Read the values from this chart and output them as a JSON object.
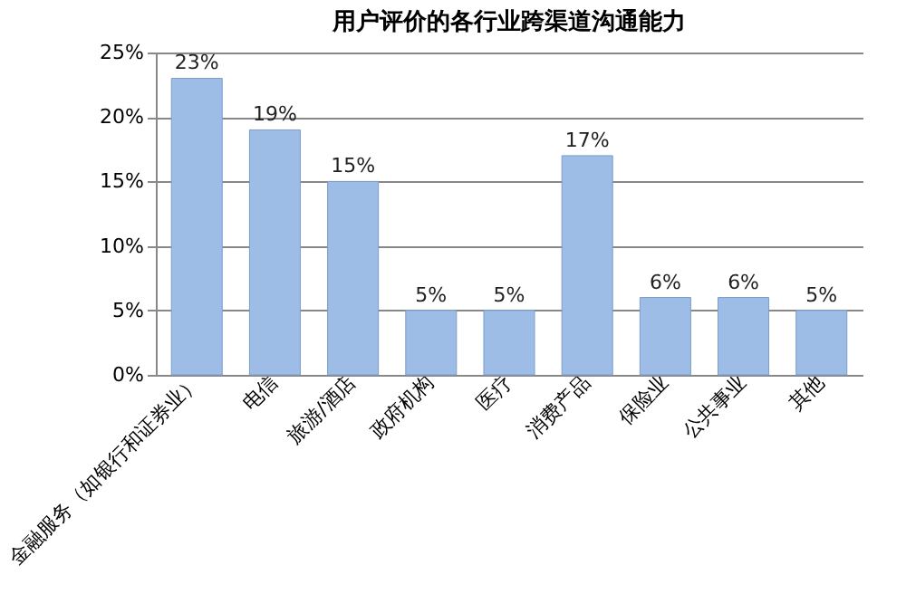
{
  "chart_data": {
    "type": "bar",
    "title": "用户评价的各行业跨渠道沟通能力",
    "categories": [
      "金融服务（如银行和证券业）",
      "电信",
      "旅游/酒店",
      "政府机构",
      "医疗",
      "消费产品",
      "保险业",
      "公共事业",
      "其他"
    ],
    "values": [
      23,
      19,
      15,
      5,
      5,
      17,
      6,
      6,
      5
    ],
    "value_labels": [
      "23%",
      "19%",
      "15%",
      "5%",
      "5%",
      "17%",
      "6%",
      "6%",
      "5%"
    ],
    "color": "#9dbde6",
    "ylim": [
      0,
      25
    ],
    "yticks": [
      {
        "value": 0,
        "label": "0%"
      },
      {
        "value": 5,
        "label": "5%"
      },
      {
        "value": 10,
        "label": "10%"
      },
      {
        "value": 15,
        "label": "15%"
      },
      {
        "value": 20,
        "label": "20%"
      },
      {
        "value": 25,
        "label": "25%"
      }
    ],
    "grid": "y"
  }
}
